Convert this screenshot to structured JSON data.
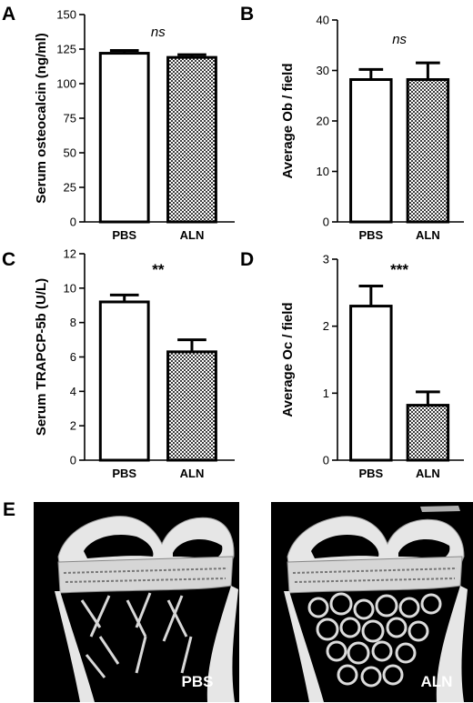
{
  "figure": {
    "panel_e": {
      "letter": "E",
      "images": [
        {
          "label": "PBS"
        },
        {
          "label": "ALN"
        }
      ]
    }
  },
  "colors": {
    "bar_control": "#ffffff",
    "bar_treated": "checkered-pattern",
    "axis": "#000000",
    "image_background": "#000000",
    "bone": "#e6e6e6"
  },
  "chart_data": [
    {
      "type": "bar",
      "panel": "A",
      "ylabel": "Serum osteocalcin (ng/ml)",
      "categories": [
        "PBS",
        "ALN"
      ],
      "values": [
        122,
        119
      ],
      "errors": [
        2,
        2
      ],
      "ylim": [
        0,
        150
      ],
      "yticks": [
        0,
        25,
        50,
        75,
        100,
        125,
        150
      ],
      "annotation": "ns",
      "grid": false
    },
    {
      "type": "bar",
      "panel": "B",
      "ylabel": "Average Ob / field",
      "categories": [
        "PBS",
        "ALN"
      ],
      "values": [
        28.2,
        28.2
      ],
      "errors": [
        2.0,
        3.3
      ],
      "ylim": [
        0,
        40
      ],
      "yticks": [
        0,
        10,
        20,
        30,
        40
      ],
      "annotation": "ns",
      "grid": false
    },
    {
      "type": "bar",
      "panel": "C",
      "ylabel": "Serum TRAPCP-5b (U/L)",
      "categories": [
        "PBS",
        "ALN"
      ],
      "values": [
        9.2,
        6.3
      ],
      "errors": [
        0.4,
        0.7
      ],
      "ylim": [
        0,
        12
      ],
      "yticks": [
        0,
        2,
        4,
        6,
        8,
        10,
        12
      ],
      "annotation": "**",
      "grid": false
    },
    {
      "type": "bar",
      "panel": "D",
      "ylabel": "Average Oc / field",
      "categories": [
        "PBS",
        "ALN"
      ],
      "values": [
        2.3,
        0.82
      ],
      "errors": [
        0.3,
        0.2
      ],
      "ylim": [
        0,
        3
      ],
      "yticks": [
        0,
        1,
        2,
        3
      ],
      "annotation": "***",
      "grid": false
    }
  ]
}
